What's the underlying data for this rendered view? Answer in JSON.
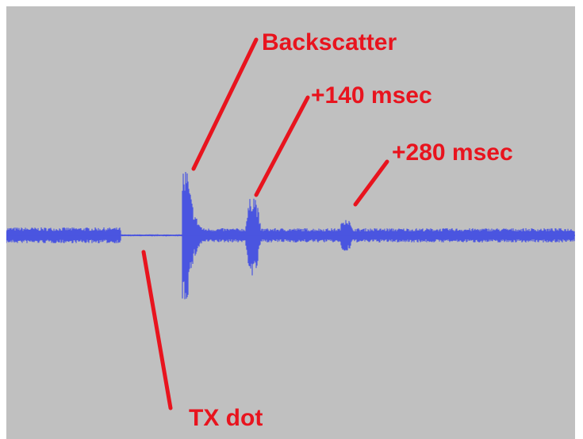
{
  "colors": {
    "background": "#c0c0c0",
    "waveform": "#4a55e0",
    "annotation": "#e8141e"
  },
  "annotations": {
    "backscatter": "Backscatter",
    "echo_140": "+140 msec",
    "echo_280": "+280 msec",
    "tx_dot": "TX dot"
  }
}
